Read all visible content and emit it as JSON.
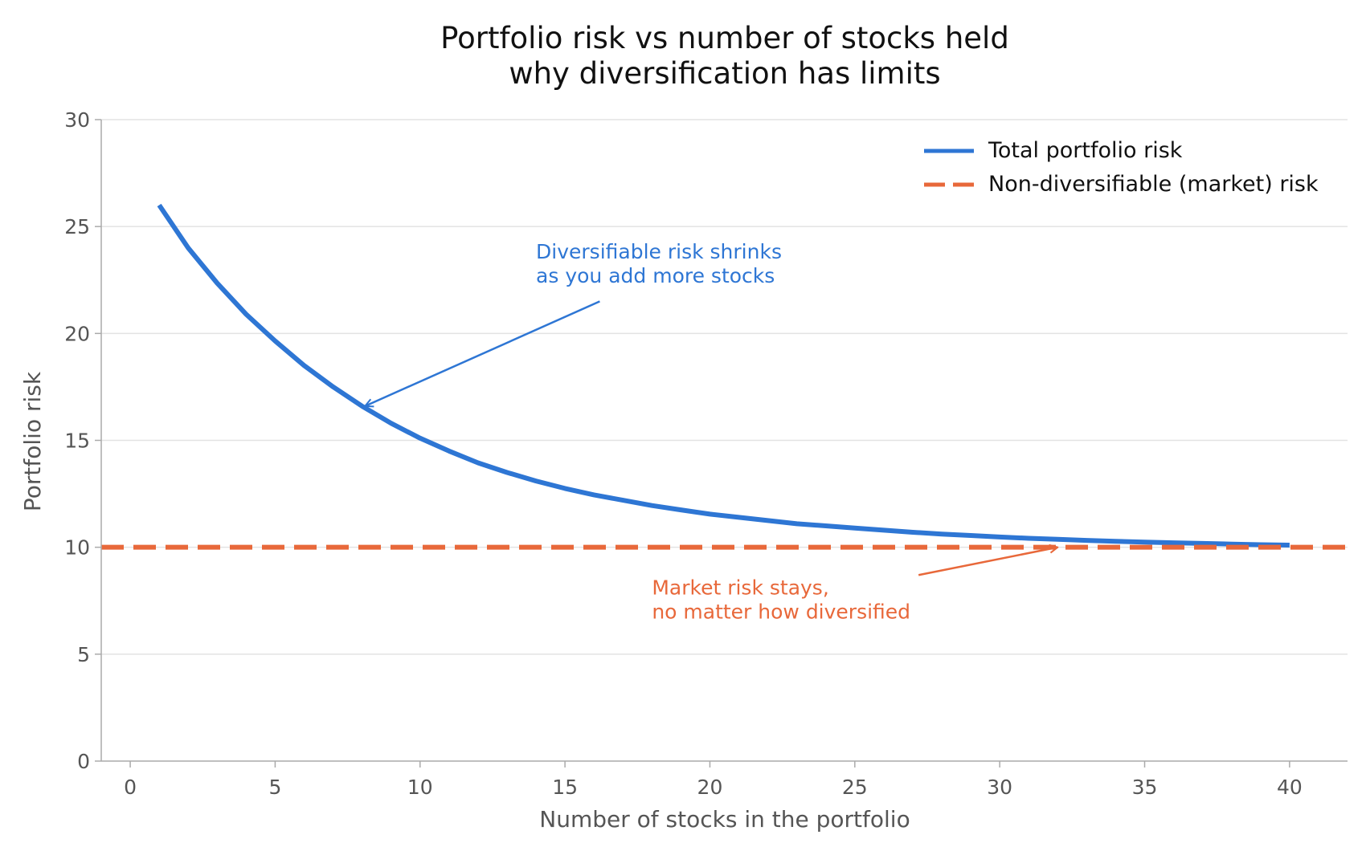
{
  "chart_data": {
    "type": "line",
    "title": "Portfolio risk vs number of stocks held",
    "subtitle": "why diversification has limits",
    "xlabel": "Number of stocks in the portfolio",
    "ylabel": "Portfolio risk",
    "xlim": [
      -1,
      42
    ],
    "ylim": [
      0,
      30
    ],
    "xticks": [
      0,
      5,
      10,
      15,
      20,
      25,
      30,
      35,
      40
    ],
    "yticks": [
      0,
      5,
      10,
      15,
      20,
      25,
      30
    ],
    "grid": "horizontal",
    "legend_position": "top-right",
    "series": [
      {
        "name": "Total portfolio risk",
        "style": "solid",
        "color": "#2e76d4",
        "x": [
          1,
          2,
          3,
          4,
          5,
          6,
          7,
          8,
          9,
          10,
          11,
          12,
          13,
          14,
          15,
          16,
          17,
          18,
          19,
          20,
          21,
          22,
          23,
          24,
          25,
          26,
          27,
          28,
          29,
          30,
          31,
          32,
          33,
          34,
          35,
          36,
          37,
          38,
          39,
          40
        ],
        "y": [
          26.0,
          24.0,
          22.35,
          20.9,
          19.65,
          18.5,
          17.5,
          16.6,
          15.8,
          15.1,
          14.5,
          13.95,
          13.5,
          13.1,
          12.75,
          12.45,
          12.2,
          11.95,
          11.75,
          11.55,
          11.4,
          11.25,
          11.1,
          11.0,
          10.9,
          10.8,
          10.7,
          10.62,
          10.55,
          10.48,
          10.42,
          10.37,
          10.32,
          10.28,
          10.24,
          10.21,
          10.18,
          10.15,
          10.12,
          10.1
        ]
      },
      {
        "name": "Non-diversifiable (market) risk",
        "style": "dashed",
        "color": "#e8683a",
        "y_constant": 10
      }
    ],
    "annotations": [
      {
        "lines": [
          "Diversifiable risk shrinks",
          "as you add more stocks"
        ],
        "color": "#2e76d4",
        "text_at": [
          14,
          23.5
        ],
        "arrow_from": [
          16.2,
          21.5
        ],
        "arrow_to": [
          8.1,
          16.6
        ]
      },
      {
        "lines": [
          "Market risk stays,",
          "no matter how diversified"
        ],
        "color": "#e8683a",
        "text_at": [
          18,
          7.8
        ],
        "arrow_from": [
          27.2,
          8.7
        ],
        "arrow_to": [
          32,
          10
        ]
      }
    ]
  }
}
